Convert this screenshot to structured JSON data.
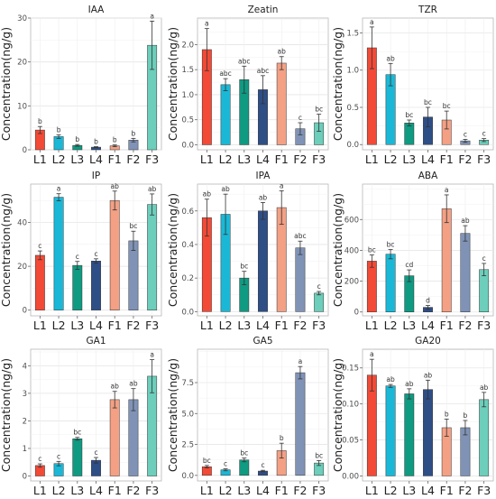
{
  "y_axis_label": "Concentration(ng/g)",
  "categories": [
    "L1",
    "L2",
    "L3",
    "L4",
    "F1",
    "F2",
    "F3"
  ],
  "colors": [
    "#F24A36",
    "#1AB8D6",
    "#0F9A82",
    "#2E4E86",
    "#F3A084",
    "#8093B7",
    "#6CCEBB"
  ],
  "chart_data": [
    {
      "type": "bar",
      "title": "IAA",
      "categories": [
        "L1",
        "L2",
        "L3",
        "L4",
        "F1",
        "F2",
        "F3"
      ],
      "values": [
        4.5,
        3.0,
        1.0,
        0.6,
        0.9,
        2.2,
        23.8
      ],
      "errors": [
        0.8,
        0.4,
        0.2,
        0.1,
        0.2,
        0.4,
        5.5
      ],
      "letters": [
        "b",
        "b",
        "b",
        "b",
        "b",
        "b",
        "a"
      ],
      "ylim": [
        0,
        30
      ],
      "ticks": [
        "0",
        "10",
        "20",
        "30"
      ],
      "ylabel": "Concentration(ng/g)"
    },
    {
      "type": "bar",
      "title": "Zeatin",
      "categories": [
        "L1",
        "L2",
        "L3",
        "L4",
        "F1",
        "F2",
        "F3"
      ],
      "values": [
        1.9,
        1.2,
        1.3,
        1.1,
        1.63,
        0.32,
        0.44
      ],
      "errors": [
        0.42,
        0.12,
        0.27,
        0.28,
        0.13,
        0.12,
        0.17
      ],
      "letters": [
        "a",
        "abc",
        "abc",
        "abc",
        "ab",
        "c",
        "bc"
      ],
      "ylim": [
        -0.1,
        2.53
      ],
      "ticks": [
        "0.0",
        "0.5",
        "1.0",
        "1.5",
        "2.0"
      ],
      "ylabel": "Concentration(ng/g)"
    },
    {
      "type": "bar",
      "title": "TZR",
      "categories": [
        "L1",
        "L2",
        "L3",
        "L4",
        "F1",
        "F2",
        "F3"
      ],
      "values": [
        1.3,
        0.94,
        0.29,
        0.37,
        0.33,
        0.05,
        0.06
      ],
      "errors": [
        0.28,
        0.15,
        0.04,
        0.13,
        0.12,
        0.02,
        0.02
      ],
      "letters": [
        "a",
        "ab",
        "bc",
        "bc",
        "bc",
        "c",
        "c"
      ],
      "ylim": [
        -0.07,
        1.7
      ],
      "ticks": [
        "0.0",
        "0.5",
        "1.0",
        "1.5"
      ],
      "ylabel": "Concentration(ng/g)"
    },
    {
      "type": "bar",
      "title": "IP",
      "categories": [
        "L1",
        "L2",
        "L3",
        "L4",
        "F1",
        "F2",
        "F3"
      ],
      "values": [
        25.0,
        51.5,
        20.4,
        22.4,
        50.0,
        31.6,
        48.2
      ],
      "errors": [
        2.0,
        1.6,
        1.8,
        1.0,
        4.3,
        4.4,
        4.8
      ],
      "letters": [
        "c",
        "a",
        "c",
        "c",
        "ab",
        "bc",
        "ab"
      ],
      "ylim": [
        -2.6,
        57.5
      ],
      "ticks": [
        "0",
        "20",
        "40"
      ],
      "ylabel": "Concentration(ng/g)"
    },
    {
      "type": "bar",
      "title": "IPA",
      "categories": [
        "L1",
        "L2",
        "L3",
        "L4",
        "F1",
        "F2",
        "F3"
      ],
      "values": [
        0.56,
        0.58,
        0.2,
        0.6,
        0.62,
        0.38,
        0.11
      ],
      "errors": [
        0.11,
        0.12,
        0.04,
        0.05,
        0.1,
        0.04,
        0.01
      ],
      "letters": [
        "ab",
        "ab",
        "bc",
        "ab",
        "a",
        "abc",
        "c"
      ],
      "ylim": [
        -0.025,
        0.76
      ],
      "ticks": [
        "0.0",
        "0.2",
        "0.4",
        "0.6"
      ],
      "ylabel": "Concentration(ng/g)"
    },
    {
      "type": "bar",
      "title": "ABA",
      "categories": [
        "L1",
        "L2",
        "L3",
        "L4",
        "F1",
        "F2",
        "F3"
      ],
      "values": [
        330,
        375,
        235,
        30,
        670,
        510,
        275
      ],
      "errors": [
        40,
        30,
        38,
        12,
        90,
        50,
        40
      ],
      "letters": [
        "bc",
        "bc",
        "cd",
        "d",
        "a",
        "ab",
        "c"
      ],
      "ylim": [
        -25,
        830
      ],
      "ticks": [
        "0",
        "200",
        "400",
        "600"
      ],
      "ylabel": "Concentration(ng/g)"
    },
    {
      "type": "bar",
      "title": "GA1",
      "categories": [
        "L1",
        "L2",
        "L3",
        "L4",
        "F1",
        "F2",
        "F3"
      ],
      "values": [
        0.38,
        0.45,
        1.35,
        0.57,
        2.77,
        2.77,
        3.62
      ],
      "errors": [
        0.06,
        0.08,
        0.05,
        0.1,
        0.3,
        0.4,
        0.6
      ],
      "letters": [
        "c",
        "c",
        "bc",
        "c",
        "ab",
        "ab",
        "a"
      ],
      "ylim": [
        -0.18,
        4.6
      ],
      "ticks": [
        "0",
        "1",
        "2",
        "3",
        "4"
      ],
      "ylabel": "Concentration(ng/g)"
    },
    {
      "type": "bar",
      "title": "GA5",
      "categories": [
        "L1",
        "L2",
        "L3",
        "L4",
        "F1",
        "F2",
        "F3"
      ],
      "values": [
        0.7,
        0.45,
        1.25,
        0.35,
        2.0,
        8.3,
        1.0
      ],
      "errors": [
        0.1,
        0.08,
        0.15,
        0.06,
        0.6,
        0.5,
        0.2
      ],
      "letters": [
        "bc",
        "c",
        "bc",
        "c",
        "b",
        "a",
        "bc"
      ],
      "ylim": [
        -0.45,
        10.2
      ],
      "ticks": [
        "0.0",
        "2.5",
        "5.0",
        "7.5"
      ],
      "ylabel": "Concentration(ng/g)"
    },
    {
      "type": "bar",
      "title": "GA20",
      "categories": [
        "L1",
        "L2",
        "L3",
        "L4",
        "F1",
        "F2",
        "F3"
      ],
      "values": [
        0.14,
        0.125,
        0.114,
        0.12,
        0.067,
        0.067,
        0.106
      ],
      "errors": [
        0.022,
        0.002,
        0.007,
        0.013,
        0.012,
        0.01,
        0.01
      ],
      "letters": [
        "a",
        "ab",
        "ab",
        "ab",
        "b",
        "b",
        "ab"
      ],
      "ylim": [
        -0.007,
        0.176
      ],
      "ticks": [
        "0.00",
        "0.05",
        "0.10",
        "0.15"
      ],
      "ylabel": "Concentration(ng/g)"
    }
  ]
}
